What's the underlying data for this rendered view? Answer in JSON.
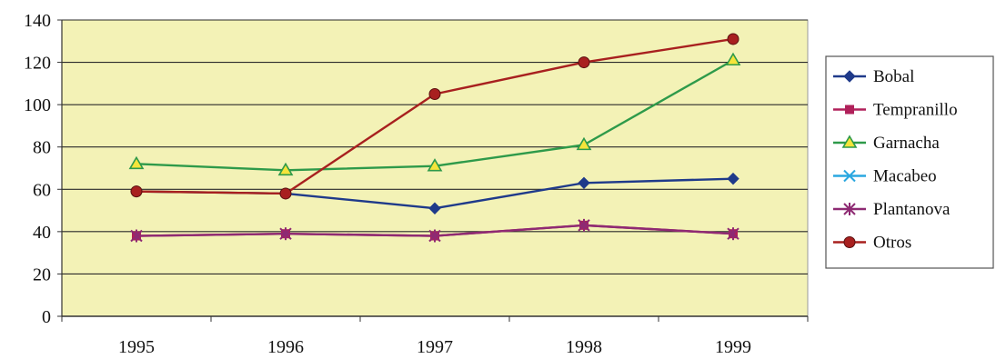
{
  "chart_data": {
    "type": "line",
    "categories": [
      "1995",
      "1996",
      "1997",
      "1998",
      "1999"
    ],
    "ylim": [
      0,
      140
    ],
    "yticks": [
      0,
      20,
      40,
      60,
      80,
      100,
      120,
      140
    ],
    "grid": true,
    "legend_position": "right",
    "plot_background": "#f3f2b6",
    "series": [
      {
        "name": "Bobal",
        "values": [
          59,
          58,
          51,
          63,
          65
        ],
        "color": "#1f3a8a",
        "marker": "diamond"
      },
      {
        "name": "Tempranillo",
        "values": [
          38,
          39,
          38,
          43,
          39
        ],
        "color": "#b0205a",
        "marker": "square"
      },
      {
        "name": "Garnacha",
        "values": [
          72,
          69,
          71,
          81,
          121
        ],
        "color": "#2e9a4a",
        "marker": "triangle"
      },
      {
        "name": "Macabeo",
        "values": [
          null,
          null,
          null,
          null,
          null
        ],
        "color": "#2aa7e0",
        "marker": "x"
      },
      {
        "name": "Plantanova",
        "values": [
          38,
          39,
          38,
          43,
          39
        ],
        "color": "#8e2a73",
        "marker": "star"
      },
      {
        "name": "Otros",
        "values": [
          59,
          58,
          105,
          120,
          131
        ],
        "color": "#a8201f",
        "marker": "circle"
      }
    ]
  }
}
